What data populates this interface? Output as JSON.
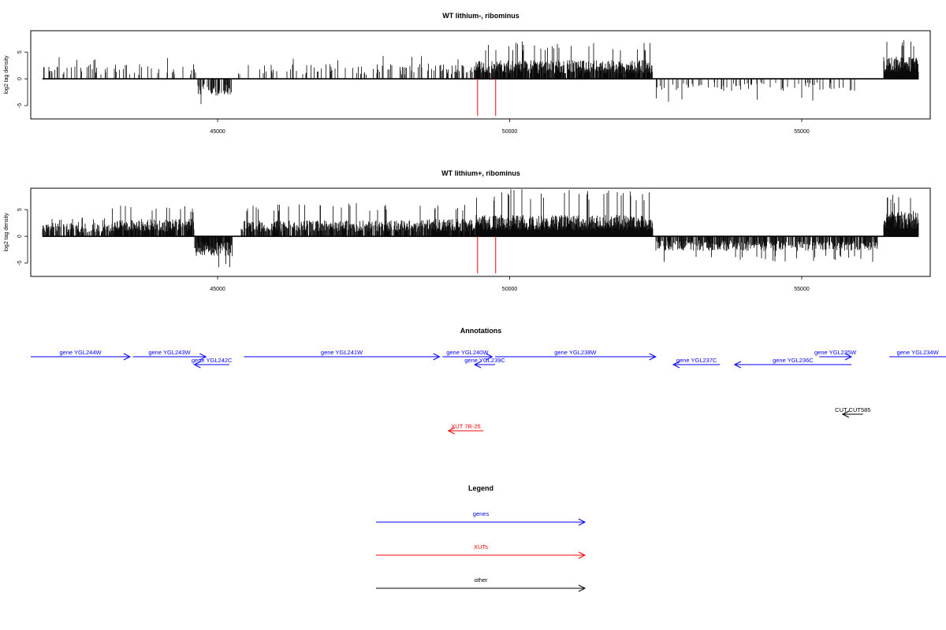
{
  "colors": {
    "gene": "#0000ff",
    "xut": "#ff0000",
    "other": "#000000",
    "marker": "#ff0000"
  },
  "chart_data": [
    {
      "type": "bar",
      "title": "WT lithium-, ribominus",
      "ylabel": "log2 tag density",
      "xlim": [
        41800,
        57200
      ],
      "ylim": [
        -7.5,
        9
      ],
      "yticks": [
        -5,
        0,
        5
      ],
      "xticks": [
        45000,
        50000,
        55000
      ],
      "markers": [
        49450,
        49760
      ],
      "seed": 11,
      "segments": [
        {
          "from": 42000,
          "to": 44650,
          "sign": 1,
          "density": 0.16,
          "typ": 2.2,
          "max": 4.6
        },
        {
          "from": 44650,
          "to": 45250,
          "sign": -1,
          "density": 0.55,
          "typ": 2.5,
          "max": 5.4
        },
        {
          "from": 45300,
          "to": 48600,
          "sign": 1,
          "density": 0.16,
          "typ": 2.2,
          "max": 4.4
        },
        {
          "from": 48600,
          "to": 49400,
          "sign": 1,
          "density": 0.25,
          "typ": 2.3,
          "max": 4.5
        },
        {
          "from": 49400,
          "to": 52450,
          "sign": 1,
          "density": 0.9,
          "typ": 2.8,
          "max": 7.0
        },
        {
          "from": 52500,
          "to": 55950,
          "sign": -1,
          "density": 0.14,
          "typ": 1.8,
          "max": 4.3
        },
        {
          "from": 56400,
          "to": 57000,
          "sign": 1,
          "density": 1.0,
          "typ": 3.4,
          "max": 7.6
        }
      ]
    },
    {
      "type": "bar",
      "title": "WT lithium+, ribominus",
      "ylabel": "log2 tag density",
      "xlim": [
        41800,
        57200
      ],
      "ylim": [
        -7.5,
        9
      ],
      "yticks": [
        -5,
        0,
        5
      ],
      "xticks": [
        45000,
        50000,
        55000
      ],
      "markers": [
        49450,
        49760
      ],
      "seed": 23,
      "segments": [
        {
          "from": 42000,
          "to": 43150,
          "sign": 1,
          "density": 0.6,
          "typ": 2.0,
          "max": 3.5
        },
        {
          "from": 43150,
          "to": 44600,
          "sign": 1,
          "density": 0.9,
          "typ": 2.6,
          "max": 5.8
        },
        {
          "from": 44600,
          "to": 45250,
          "sign": -1,
          "density": 0.9,
          "typ": 3.0,
          "max": 6.5
        },
        {
          "from": 45400,
          "to": 48500,
          "sign": 1,
          "density": 0.75,
          "typ": 2.4,
          "max": 6.2
        },
        {
          "from": 48500,
          "to": 49400,
          "sign": 1,
          "density": 0.85,
          "typ": 2.6,
          "max": 6.0
        },
        {
          "from": 49400,
          "to": 52450,
          "sign": 1,
          "density": 1.0,
          "typ": 3.2,
          "max": 8.8
        },
        {
          "from": 52500,
          "to": 56300,
          "sign": -1,
          "density": 0.65,
          "typ": 2.2,
          "max": 4.8
        },
        {
          "from": 56400,
          "to": 57000,
          "sign": 1,
          "density": 1.0,
          "typ": 3.8,
          "max": 8.0
        }
      ]
    }
  ],
  "annotations": {
    "title": "Annotations",
    "items": [
      {
        "label": "gene YGL244W",
        "start": 41800,
        "end": 43500,
        "strand": "+",
        "kind": "gene",
        "row": 0
      },
      {
        "label": "gene YGL243W",
        "start": 43550,
        "end": 44800,
        "strand": "+",
        "kind": "gene",
        "row": 0
      },
      {
        "label": "gene YGL242C",
        "start": 44600,
        "end": 45200,
        "strand": "-",
        "kind": "gene",
        "row": 1
      },
      {
        "label": "gene YGL241W",
        "start": 45450,
        "end": 48800,
        "strand": "+",
        "kind": "gene",
        "row": 0
      },
      {
        "label": "gene YGL240W",
        "start": 48850,
        "end": 49700,
        "strand": "+",
        "kind": "gene",
        "row": 0
      },
      {
        "label": "gene YGL239C",
        "start": 49400,
        "end": 49750,
        "strand": "-",
        "kind": "gene",
        "row": 1
      },
      {
        "label": "gene YGL238W",
        "start": 49750,
        "end": 52500,
        "strand": "+",
        "kind": "gene",
        "row": 0
      },
      {
        "label": "gene YGL237C",
        "start": 52800,
        "end": 53600,
        "strand": "-",
        "kind": "gene",
        "row": 1
      },
      {
        "label": "gene YGL236C",
        "start": 53850,
        "end": 55850,
        "strand": "-",
        "kind": "gene",
        "row": 1
      },
      {
        "label": "gene YGL235W",
        "start": 55300,
        "end": 55850,
        "strand": "+",
        "kind": "gene",
        "row": 0
      },
      {
        "label": "gene YGL234W",
        "start": 56500,
        "end": 57500,
        "strand": "+",
        "kind": "gene",
        "row": 0
      },
      {
        "label": "CUT CUT585",
        "start": 55700,
        "end": 56050,
        "strand": "-",
        "kind": "other",
        "row": 2
      },
      {
        "label": "XUT 7R-25",
        "start": 48950,
        "end": 49550,
        "strand": "-",
        "kind": "xut",
        "row": 3
      }
    ]
  },
  "legend": {
    "title": "Legend",
    "items": [
      {
        "label": "genes",
        "kind": "gene"
      },
      {
        "label": "XUTs",
        "kind": "xut"
      },
      {
        "label": "other",
        "kind": "other"
      }
    ]
  }
}
